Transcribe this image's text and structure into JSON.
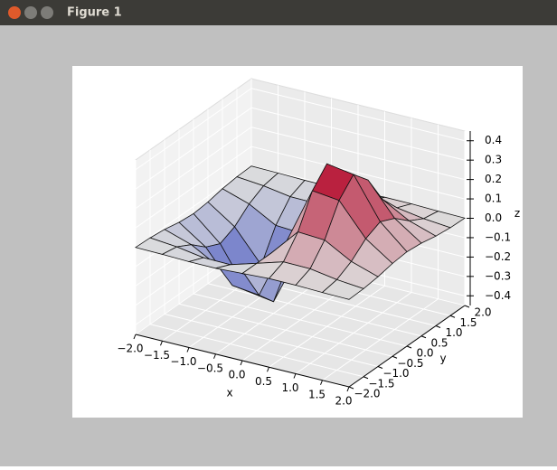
{
  "window": {
    "title": "Figure 1"
  },
  "chart_data": {
    "type": "surface",
    "x_label": "x",
    "y_label": "y",
    "z_label": "z",
    "x": [
      -2,
      -1.5,
      -1,
      -0.5,
      0,
      0.5,
      1,
      1.5,
      2
    ],
    "y": [
      -2,
      -1.5,
      -1,
      -0.5,
      0,
      0.5,
      1,
      1.5,
      2
    ],
    "z": [
      [
        -0.001,
        -0.003,
        -0.007,
        -0.007,
        0,
        0.007,
        0.007,
        0.003,
        0.001
      ],
      [
        -0.004,
        -0.017,
        -0.039,
        -0.041,
        0,
        0.041,
        0.039,
        0.017,
        0.004
      ],
      [
        -0.013,
        -0.058,
        -0.135,
        -0.143,
        0,
        0.143,
        0.135,
        0.058,
        0.013
      ],
      [
        -0.029,
        -0.123,
        -0.287,
        -0.303,
        0,
        0.303,
        0.287,
        0.123,
        0.029
      ],
      [
        -0.037,
        -0.158,
        -0.368,
        -0.389,
        0,
        0.389,
        0.368,
        0.158,
        0.037
      ],
      [
        -0.029,
        -0.123,
        -0.287,
        -0.303,
        0,
        0.303,
        0.287,
        0.123,
        0.029
      ],
      [
        -0.013,
        -0.058,
        -0.135,
        -0.143,
        0,
        0.143,
        0.135,
        0.058,
        0.013
      ],
      [
        -0.004,
        -0.017,
        -0.039,
        -0.041,
        0,
        0.041,
        0.039,
        0.017,
        0.004
      ],
      [
        -0.001,
        -0.003,
        -0.007,
        -0.007,
        0,
        0.007,
        0.007,
        0.003,
        0.001
      ]
    ],
    "colors": [
      "#3b4cc0",
      "#dddddd",
      "#b40426"
    ],
    "xlim": [
      -2,
      2
    ],
    "ylim": [
      -2,
      2
    ],
    "zlim": [
      -0.45,
      0.45
    ],
    "xticks": [
      {
        "value": -2,
        "label": "−2.0"
      },
      {
        "value": -1.5,
        "label": "−1.5"
      },
      {
        "value": -1,
        "label": "−1.0"
      },
      {
        "value": -0.5,
        "label": "−0.5"
      },
      {
        "value": 0,
        "label": "0.0"
      },
      0.5,
      {
        "value": 1,
        "label": "1.0"
      },
      1.5,
      {
        "value": 2,
        "label": "2.0"
      }
    ],
    "yticks": [
      {
        "value": -2,
        "label": "−2.0"
      },
      {
        "value": -1.5,
        "label": "−1.5"
      },
      {
        "value": -1,
        "label": "−1.0"
      },
      {
        "value": -0.5,
        "label": "−0.5"
      },
      {
        "value": 0,
        "label": "0.0"
      },
      0.5,
      {
        "value": 1,
        "label": "1.0"
      },
      1.5,
      {
        "value": 2,
        "label": "2.0"
      }
    ],
    "zticks": [
      {
        "value": -0.4,
        "label": "−0.4"
      },
      {
        "value": -0.3,
        "label": "−0.3"
      },
      {
        "value": -0.2,
        "label": "−0.2"
      },
      {
        "value": -0.1,
        "label": "−0.1"
      },
      {
        "value": 0,
        "label": "0.0"
      },
      0.1,
      0.2,
      0.3,
      0.4
    ],
    "grid": true
  }
}
